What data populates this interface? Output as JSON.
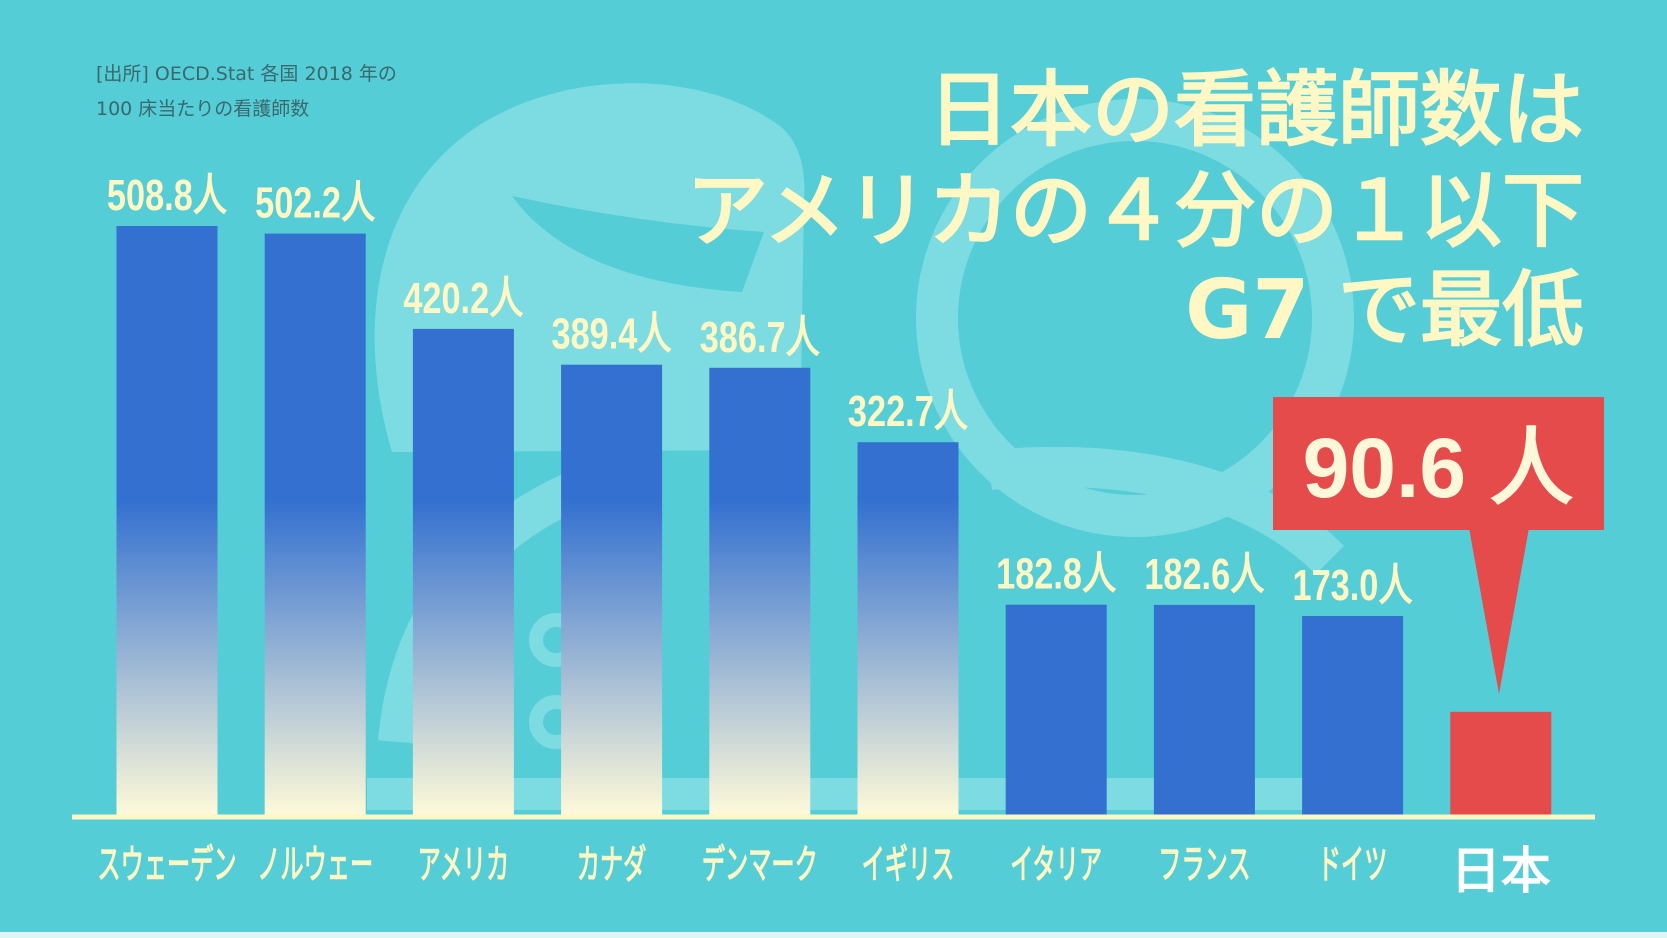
{
  "source_note": {
    "lines": [
      "[出所] OECD.Stat 各国 2018 年の",
      "100 床当たりの看護師数"
    ]
  },
  "headline": {
    "lines": [
      "日本の看護師数は",
      "アメリカの４分の１以下",
      "G7 で最低"
    ]
  },
  "colors": {
    "background": "#55cdd6",
    "illustration": "#7ddbe2",
    "bar": "#3370d0",
    "bar_fade": "#fcf8d9",
    "highlight": "#e64b4b",
    "text": "#fff8c4",
    "highlight_text": "#ffffff",
    "note_text": "#39686d"
  },
  "chart_data": {
    "type": "bar",
    "categories": [
      "スウェーデン",
      "ノルウェー",
      "アメリカ",
      "カナダ",
      "デンマーク",
      "イギリス",
      "イタリア",
      "フランス",
      "ドイツ",
      "日本"
    ],
    "values": [
      508.8,
      502.2,
      420.2,
      389.4,
      386.7,
      322.7,
      182.8,
      182.6,
      173.0,
      90.6
    ],
    "value_labels": [
      "508.8人",
      "502.2人",
      "420.2人",
      "389.4人",
      "386.7人",
      "322.7人",
      "182.8人",
      "182.6人",
      "173.0人",
      "90.6 人"
    ],
    "highlight_index": 9,
    "grid": false
  }
}
